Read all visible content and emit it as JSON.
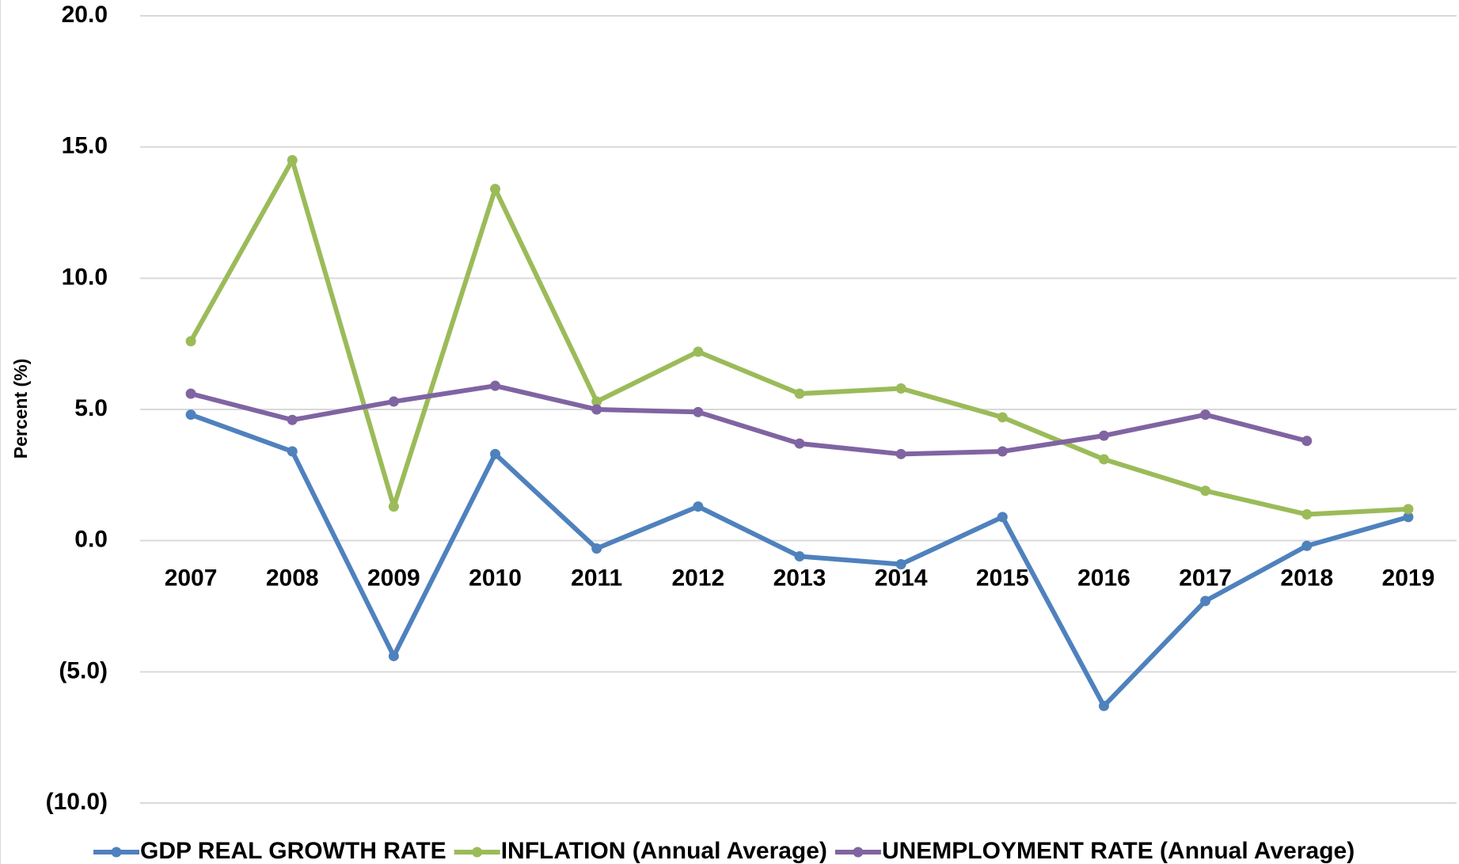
{
  "chart_data": {
    "type": "line",
    "y_label": "Percent (%)",
    "categories": [
      "2007",
      "2008",
      "2009",
      "2010",
      "2011",
      "2012",
      "2013",
      "2014",
      "2015",
      "2016",
      "2017",
      "2018",
      "2019"
    ],
    "series": [
      {
        "name": "GDP REAL GROWTH RATE",
        "color": "#4f81bd",
        "values": [
          4.8,
          3.4,
          -4.4,
          3.3,
          -0.3,
          1.3,
          -0.6,
          -0.9,
          0.9,
          -6.3,
          -2.3,
          -0.2,
          0.9
        ]
      },
      {
        "name": "INFLATION (Annual Average)",
        "color": "#9bbb59",
        "values": [
          7.6,
          14.5,
          1.3,
          13.4,
          5.3,
          7.2,
          5.6,
          5.8,
          4.7,
          3.1,
          1.9,
          1.0,
          1.2
        ]
      },
      {
        "name": "UNEMPLOYMENT RATE (Annual Average)",
        "color": "#8064a2",
        "values": [
          5.6,
          4.6,
          5.3,
          5.9,
          5.0,
          4.9,
          3.7,
          3.3,
          3.4,
          4.0,
          4.8,
          3.8,
          null
        ]
      }
    ],
    "ylim": [
      -10,
      20
    ],
    "yticks": [
      {
        "value": -10,
        "label": "(10.0)"
      },
      {
        "value": -5,
        "label": "(5.0)"
      },
      {
        "value": 0,
        "label": "0.0"
      },
      {
        "value": 5,
        "label": "5.0"
      },
      {
        "value": 10,
        "label": "10.0"
      },
      {
        "value": 15,
        "label": "15.0"
      },
      {
        "value": 20,
        "label": "20.0"
      }
    ],
    "grid": true,
    "legend": "bottom"
  }
}
